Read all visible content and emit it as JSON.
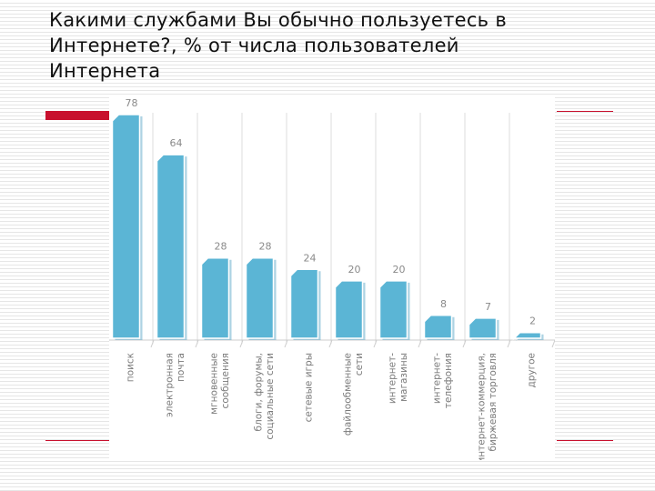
{
  "title": "Какими службами Вы обычно пользуетесь в\nИнтернете?, % от числа пользователей\nИнтернета",
  "colors": {
    "bar": "#5bb5d5",
    "bar_shadow": "#4a9ec2",
    "accent": "#c8102e",
    "grid": "#dddddd"
  },
  "chart_data": {
    "type": "bar",
    "title": "Какими службами Вы обычно пользуетесь в Интернете?, % от числа пользователей Интернета",
    "categories": [
      "поиск",
      "электронная\nпочта",
      "мгновенные\nсообщения",
      "блоги, форумы,\nсоциальные сети",
      "сетевые игры",
      "файлообменные\nсети",
      "интернет-\nмагазины",
      "интернет-\nтелефония",
      "интернет-коммерция,\nбиржевая торговля",
      "другое"
    ],
    "values": [
      78,
      64,
      28,
      28,
      24,
      20,
      20,
      8,
      7,
      2
    ],
    "value_labels": [
      "78",
      "64",
      "28",
      "28",
      "24",
      "20",
      "20",
      "8",
      "7",
      "2"
    ],
    "ylim": [
      0,
      78
    ],
    "grid": true,
    "legend": "none"
  }
}
